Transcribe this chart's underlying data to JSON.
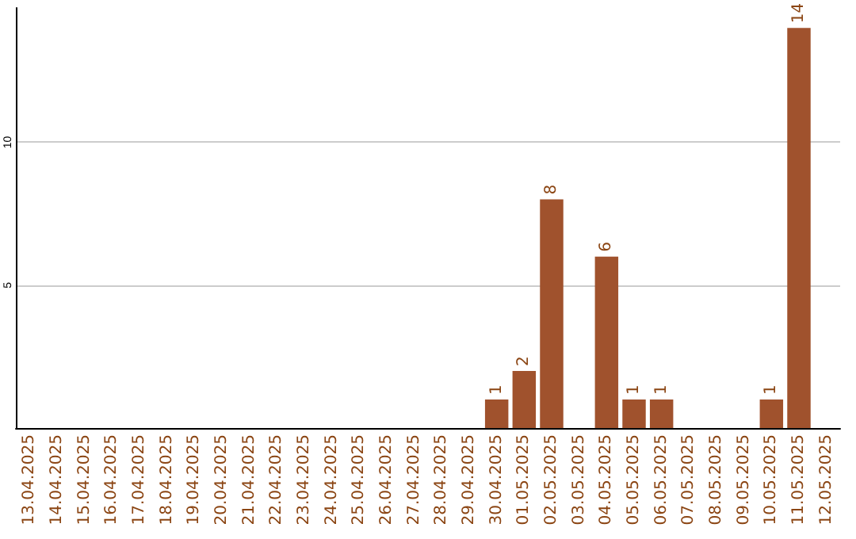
{
  "chart_data": {
    "type": "bar",
    "categories": [
      "13.04.2025",
      "14.04.2025",
      "15.04.2025",
      "16.04.2025",
      "17.04.2025",
      "18.04.2025",
      "19.04.2025",
      "20.04.2025",
      "21.04.2025",
      "22.04.2025",
      "23.04.2025",
      "24.04.2025",
      "25.04.2025",
      "26.04.2025",
      "27.04.2025",
      "28.04.2025",
      "29.04.2025",
      "30.04.2025",
      "01.05.2025",
      "02.05.2025",
      "03.05.2025",
      "04.05.2025",
      "05.05.2025",
      "06.05.2025",
      "07.05.2025",
      "08.05.2025",
      "09.05.2025",
      "10.05.2025",
      "11.05.2025",
      "12.05.2025"
    ],
    "values": [
      0,
      0,
      0,
      0,
      0,
      0,
      0,
      0,
      0,
      0,
      0,
      0,
      0,
      0,
      0,
      0,
      0,
      1,
      2,
      8,
      0,
      6,
      1,
      1,
      0,
      0,
      0,
      1,
      14,
      0
    ],
    "value_labels": [
      null,
      null,
      null,
      null,
      null,
      null,
      null,
      null,
      null,
      null,
      null,
      null,
      null,
      null,
      null,
      null,
      null,
      "1",
      "2",
      "8",
      null,
      "6",
      "1",
      "1",
      null,
      null,
      null,
      "1",
      "14",
      null
    ],
    "color": "#a0522d",
    "ylim": [
      0,
      14.7
    ],
    "yticks": [
      5,
      10
    ],
    "grid": "y"
  }
}
